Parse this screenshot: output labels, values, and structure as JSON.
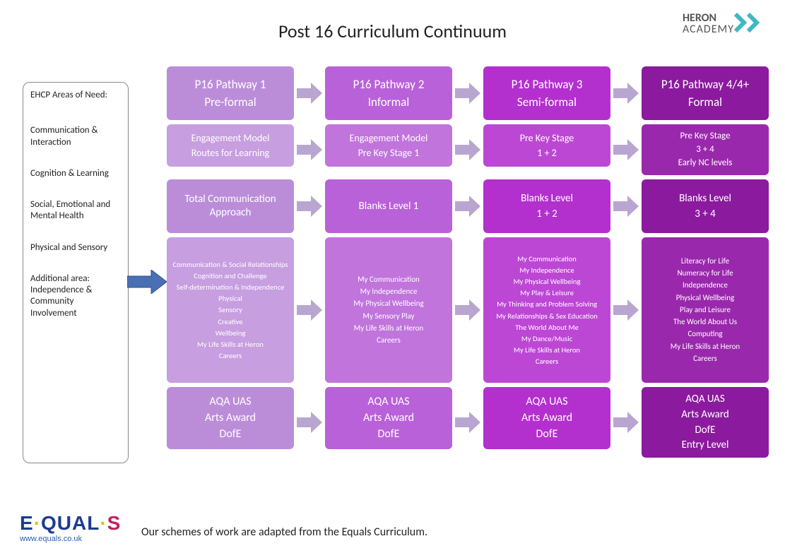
{
  "title": "Post 16 Curriculum Continuum",
  "heron_logo": {
    "line1": "HERON",
    "line2": "ACADEMY",
    "chev_color": "#3fb8c4"
  },
  "ehcp": {
    "heading": "EHCP Areas of Need:",
    "items": [
      "Communication & Interaction",
      "Cognition & Learning",
      "Social, Emotional and Mental Health",
      "Physical and Sensory",
      "Additional area: Independence & Community Involvement"
    ]
  },
  "arrow_colors": {
    "ehcp": "#4a6fb3",
    "col": "#b9a6d0"
  },
  "columns": [
    {
      "bg_head": "#bb8dd9",
      "bg_alt": "#c79ee0"
    },
    {
      "bg_head": "#b961d9",
      "bg_alt": "#c074dc"
    },
    {
      "bg_head": "#b330cf",
      "bg_alt": "#bd47d5"
    },
    {
      "bg_head": "#8b1a9e",
      "bg_alt": "#9a28ad"
    }
  ],
  "rows": {
    "head": [
      [
        "P16 Pathway 1",
        "Pre-formal"
      ],
      [
        "P16 Pathway 2",
        "Informal"
      ],
      [
        "P16 Pathway 3",
        "Semi-formal"
      ],
      [
        "P16 Pathway 4/4+",
        "Formal"
      ]
    ],
    "r2": [
      [
        "Engagement Model",
        "Routes for Learning"
      ],
      [
        "Engagement Model",
        "Pre Key Stage 1"
      ],
      [
        "Pre Key Stage",
        "1 + 2"
      ],
      [
        "Pre Key Stage",
        "3 + 4",
        "Early NC levels"
      ]
    ],
    "r3": [
      [
        "Total Communication Approach"
      ],
      [
        "Blanks Level 1"
      ],
      [
        "Blanks Level",
        "1 + 2"
      ],
      [
        "Blanks Level",
        "3 + 4"
      ]
    ],
    "r4": [
      [
        "Communication & Social Relationships",
        "Cognition and Challenge",
        "Self-determination & Independence",
        "Physical",
        "Sensory",
        "Creative",
        "Wellbeing",
        "My Life Skills at Heron",
        "Careers"
      ],
      [
        "My Communication",
        "My Independence",
        "My Physical Wellbeing",
        "My Sensory Play",
        "My Life Skills at Heron",
        "Careers"
      ],
      [
        "My Communication",
        "My Independence",
        "My Physical Wellbeing",
        "My Play & Leisure",
        "My Thinking and Problem Solving",
        "My Relationships & Sex Education",
        "The World About Me",
        "My Dance/Music",
        "My Life Skills at Heron",
        "Careers"
      ],
      [
        "Literacy for Life",
        "Numeracy for Life",
        "Independence",
        "Physical Wellbeing",
        "Play and Leisure",
        "The World About Us",
        "Computing",
        "My Life Skills at Heron",
        "Careers"
      ]
    ],
    "r5": [
      [
        "AQA UAS",
        "Arts Award",
        "DofE"
      ],
      [
        "AQA UAS",
        "Arts Award",
        "DofE"
      ],
      [
        "AQA UAS",
        "Arts Award",
        "DofE"
      ],
      [
        "AQA UAS",
        "Arts Award",
        "DofE",
        "Entry Level"
      ]
    ]
  },
  "footer": "Our schemes of work are adapted from the Equals Curriculum.",
  "equals": {
    "url": "www.equals.co.uk"
  }
}
